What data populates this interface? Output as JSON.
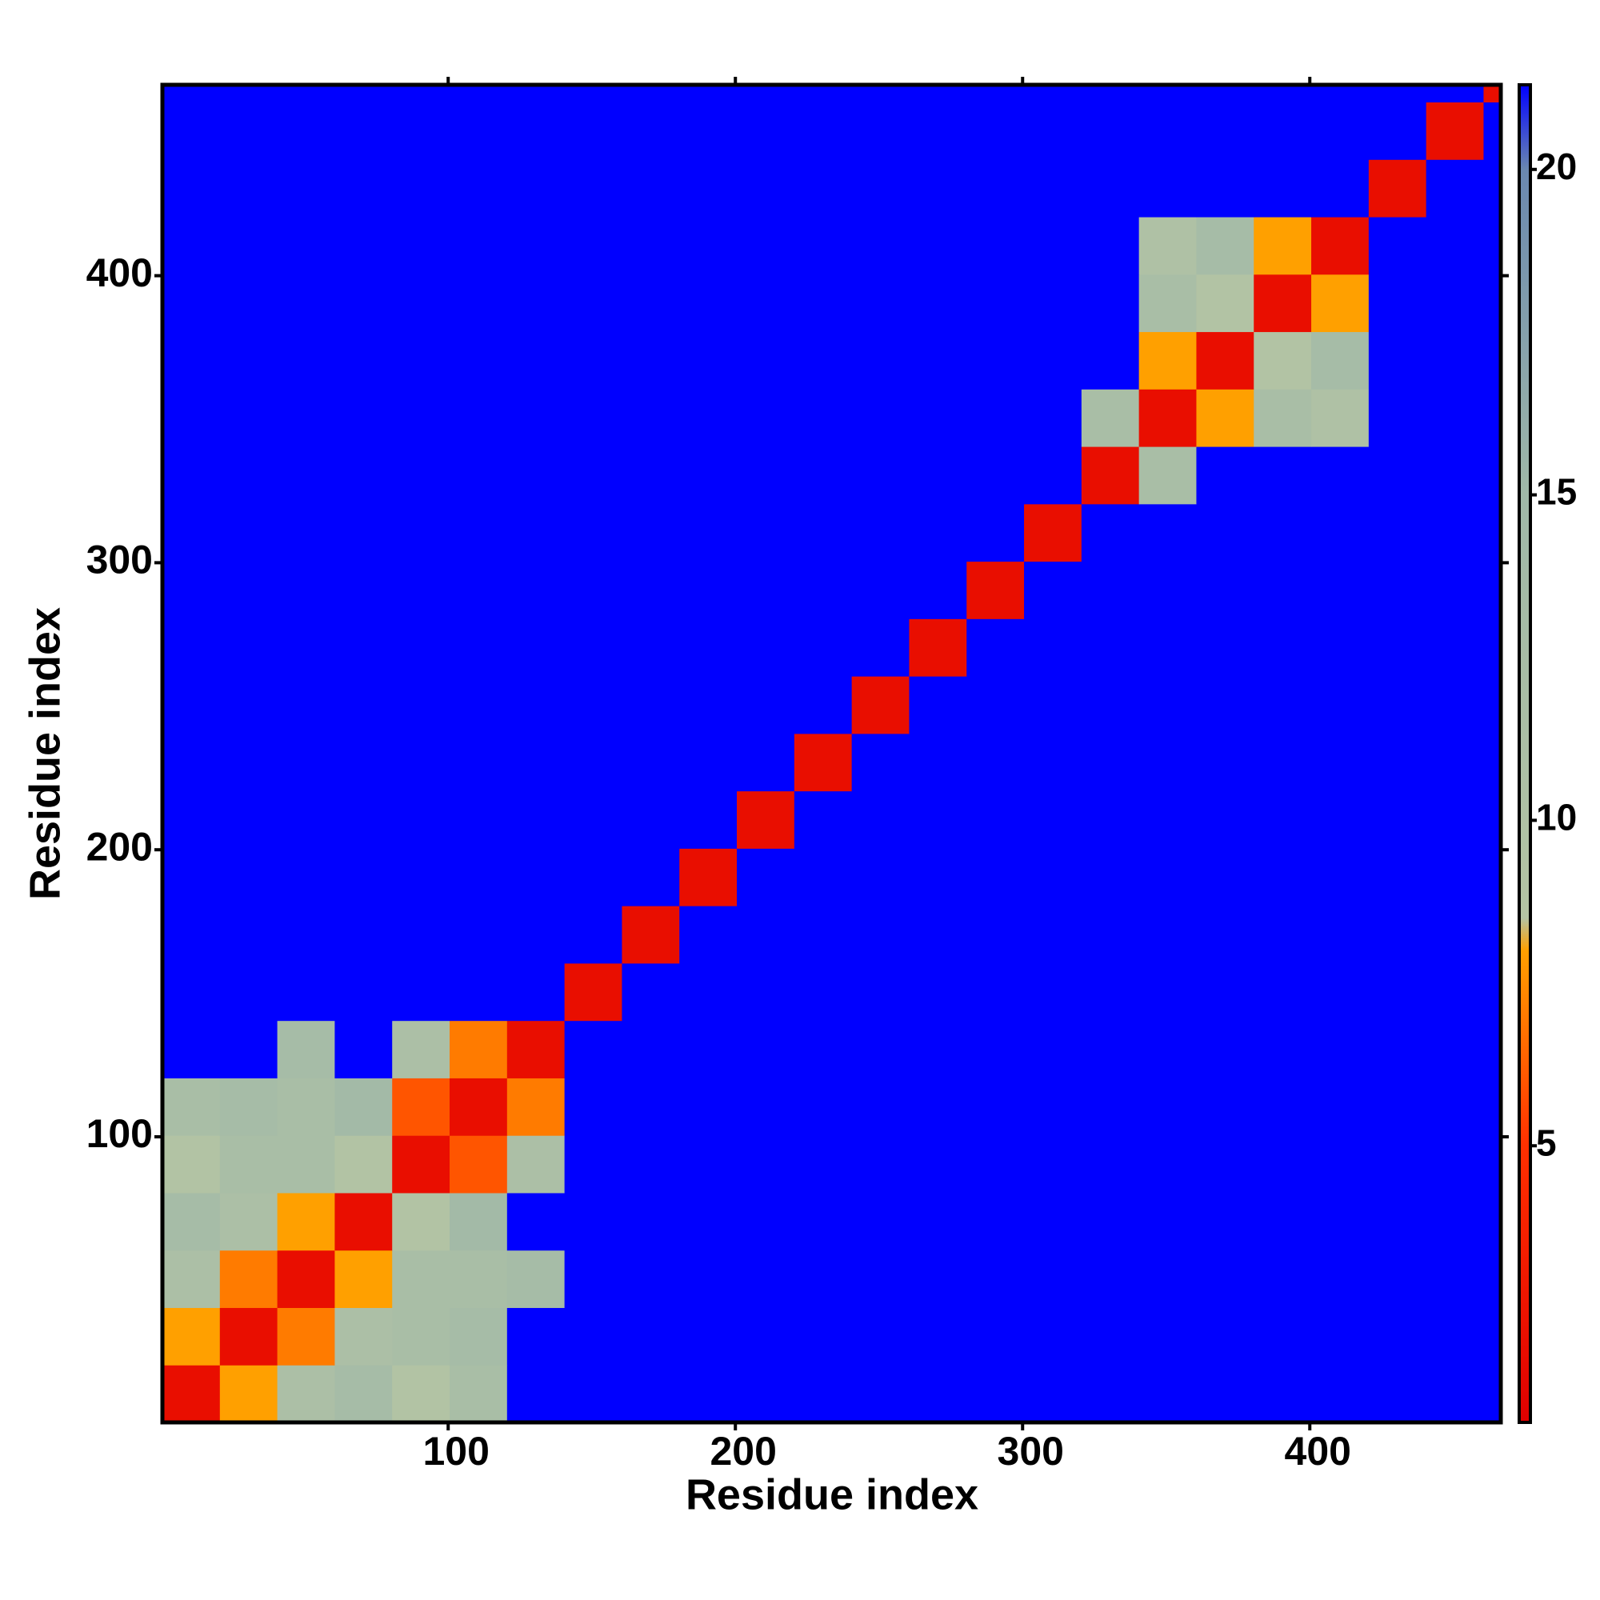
{
  "chart_data": {
    "type": "heatmap",
    "xlabel": "Residue index",
    "ylabel": "Residue index",
    "xlim": [
      0.5,
      466.5
    ],
    "ylim": [
      0.5,
      466.5
    ],
    "xticks": [
      100,
      200,
      300,
      400
    ],
    "yticks": [
      100,
      200,
      300,
      400
    ],
    "x": [
      10.5,
      30.5,
      50.5,
      70.5,
      90.5,
      110.5,
      130.5,
      150.5,
      170.5,
      190.5,
      210.5,
      230.5,
      250.5,
      270.5,
      290.5,
      310.5,
      330.5,
      350.5,
      370.5,
      390.5,
      410.5,
      430.5,
      450.5,
      470.5
    ],
    "y": [
      10.5,
      30.5,
      50.5,
      70.5,
      90.5,
      110.5,
      130.5,
      150.5,
      170.5,
      190.5,
      210.5,
      230.5,
      250.5,
      270.5,
      290.5,
      310.5,
      330.5,
      350.5,
      370.5,
      390.5,
      410.5,
      430.5,
      450.5,
      470.5
    ],
    "z": [
      [
        2,
        8,
        11,
        13,
        9,
        12,
        21.3,
        21.3,
        21.3,
        21.3,
        21.3,
        21.3,
        21.3,
        21.3,
        21.3,
        21.3,
        21.3,
        21.3,
        21.3,
        21.3,
        21.3,
        21.3,
        21.3,
        21.3
      ],
      [
        8,
        2,
        7,
        11,
        12,
        13,
        21.3,
        21.3,
        21.3,
        21.3,
        21.3,
        21.3,
        21.3,
        21.3,
        21.3,
        21.3,
        21.3,
        21.3,
        21.3,
        21.3,
        21.3,
        21.3,
        21.3,
        21.3
      ],
      [
        11,
        7,
        2,
        8,
        12,
        12,
        13,
        21.3,
        21.3,
        21.3,
        21.3,
        21.3,
        21.3,
        21.3,
        21.3,
        21.3,
        21.3,
        21.3,
        21.3,
        21.3,
        21.3,
        21.3,
        21.3,
        21.3
      ],
      [
        13,
        11,
        8,
        2,
        9,
        14,
        21.3,
        21.3,
        21.3,
        21.3,
        21.3,
        21.3,
        21.3,
        21.3,
        21.3,
        21.3,
        21.3,
        21.3,
        21.3,
        21.3,
        21.3,
        21.3,
        21.3,
        21.3
      ],
      [
        9,
        12,
        12,
        9,
        2,
        6,
        11,
        21.3,
        21.3,
        21.3,
        21.3,
        21.3,
        21.3,
        21.3,
        21.3,
        21.3,
        21.3,
        21.3,
        21.3,
        21.3,
        21.3,
        21.3,
        21.3,
        21.3
      ],
      [
        12,
        13,
        12,
        14,
        6,
        2,
        7,
        21.3,
        21.3,
        21.3,
        21.3,
        21.3,
        21.3,
        21.3,
        21.3,
        21.3,
        21.3,
        21.3,
        21.3,
        21.3,
        21.3,
        21.3,
        21.3,
        21.3
      ],
      [
        21.3,
        21.3,
        13,
        21.3,
        11,
        7,
        2,
        21.3,
        21.3,
        21.3,
        21.3,
        21.3,
        21.3,
        21.3,
        21.3,
        21.3,
        21.3,
        21.3,
        21.3,
        21.3,
        21.3,
        21.3,
        21.3,
        21.3
      ],
      [
        21.3,
        21.3,
        21.3,
        21.3,
        21.3,
        21.3,
        21.3,
        2,
        21.3,
        21.3,
        21.3,
        21.3,
        21.3,
        21.3,
        21.3,
        21.3,
        21.3,
        21.3,
        21.3,
        21.3,
        21.3,
        21.3,
        21.3,
        21.3
      ],
      [
        21.3,
        21.3,
        21.3,
        21.3,
        21.3,
        21.3,
        21.3,
        21.3,
        2,
        21.3,
        21.3,
        21.3,
        21.3,
        21.3,
        21.3,
        21.3,
        21.3,
        21.3,
        21.3,
        21.3,
        21.3,
        21.3,
        21.3,
        21.3
      ],
      [
        21.3,
        21.3,
        21.3,
        21.3,
        21.3,
        21.3,
        21.3,
        21.3,
        21.3,
        2,
        21.3,
        21.3,
        21.3,
        21.3,
        21.3,
        21.3,
        21.3,
        21.3,
        21.3,
        21.3,
        21.3,
        21.3,
        21.3,
        21.3
      ],
      [
        21.3,
        21.3,
        21.3,
        21.3,
        21.3,
        21.3,
        21.3,
        21.3,
        21.3,
        21.3,
        2,
        21.3,
        21.3,
        21.3,
        21.3,
        21.3,
        21.3,
        21.3,
        21.3,
        21.3,
        21.3,
        21.3,
        21.3,
        21.3
      ],
      [
        21.3,
        21.3,
        21.3,
        21.3,
        21.3,
        21.3,
        21.3,
        21.3,
        21.3,
        21.3,
        21.3,
        2,
        21.3,
        21.3,
        21.3,
        21.3,
        21.3,
        21.3,
        21.3,
        21.3,
        21.3,
        21.3,
        21.3,
        21.3
      ],
      [
        21.3,
        21.3,
        21.3,
        21.3,
        21.3,
        21.3,
        21.3,
        21.3,
        21.3,
        21.3,
        21.3,
        21.3,
        2,
        21.3,
        21.3,
        21.3,
        21.3,
        21.3,
        21.3,
        21.3,
        21.3,
        21.3,
        21.3,
        21.3
      ],
      [
        21.3,
        21.3,
        21.3,
        21.3,
        21.3,
        21.3,
        21.3,
        21.3,
        21.3,
        21.3,
        21.3,
        21.3,
        21.3,
        2,
        21.3,
        21.3,
        21.3,
        21.3,
        21.3,
        21.3,
        21.3,
        21.3,
        21.3,
        21.3
      ],
      [
        21.3,
        21.3,
        21.3,
        21.3,
        21.3,
        21.3,
        21.3,
        21.3,
        21.3,
        21.3,
        21.3,
        21.3,
        21.3,
        21.3,
        2,
        21.3,
        21.3,
        21.3,
        21.3,
        21.3,
        21.3,
        21.3,
        21.3,
        21.3
      ],
      [
        21.3,
        21.3,
        21.3,
        21.3,
        21.3,
        21.3,
        21.3,
        21.3,
        21.3,
        21.3,
        21.3,
        21.3,
        21.3,
        21.3,
        21.3,
        2,
        21.3,
        21.3,
        21.3,
        21.3,
        21.3,
        21.3,
        21.3,
        21.3
      ],
      [
        21.3,
        21.3,
        21.3,
        21.3,
        21.3,
        21.3,
        21.3,
        21.3,
        21.3,
        21.3,
        21.3,
        21.3,
        21.3,
        21.3,
        21.3,
        21.3,
        2,
        12,
        21.3,
        21.3,
        21.3,
        21.3,
        21.3,
        21.3
      ],
      [
        21.3,
        21.3,
        21.3,
        21.3,
        21.3,
        21.3,
        21.3,
        21.3,
        21.3,
        21.3,
        21.3,
        21.3,
        21.3,
        21.3,
        21.3,
        21.3,
        12,
        2,
        8,
        12,
        10,
        21.3,
        21.3,
        21.3
      ],
      [
        21.3,
        21.3,
        21.3,
        21.3,
        21.3,
        21.3,
        21.3,
        21.3,
        21.3,
        21.3,
        21.3,
        21.3,
        21.3,
        21.3,
        21.3,
        21.3,
        21.3,
        8,
        2,
        9,
        13,
        21.3,
        21.3,
        21.3
      ],
      [
        21.3,
        21.3,
        21.3,
        21.3,
        21.3,
        21.3,
        21.3,
        21.3,
        21.3,
        21.3,
        21.3,
        21.3,
        21.3,
        21.3,
        21.3,
        21.3,
        21.3,
        12,
        9,
        2,
        8,
        21.3,
        21.3,
        21.3
      ],
      [
        21.3,
        21.3,
        21.3,
        21.3,
        21.3,
        21.3,
        21.3,
        21.3,
        21.3,
        21.3,
        21.3,
        21.3,
        21.3,
        21.3,
        21.3,
        21.3,
        21.3,
        10,
        13,
        8,
        2,
        21.3,
        21.3,
        21.3
      ],
      [
        21.3,
        21.3,
        21.3,
        21.3,
        21.3,
        21.3,
        21.3,
        21.3,
        21.3,
        21.3,
        21.3,
        21.3,
        21.3,
        21.3,
        21.3,
        21.3,
        21.3,
        21.3,
        21.3,
        21.3,
        21.3,
        2,
        21.3,
        21.3
      ],
      [
        21.3,
        21.3,
        21.3,
        21.3,
        21.3,
        21.3,
        21.3,
        21.3,
        21.3,
        21.3,
        21.3,
        21.3,
        21.3,
        21.3,
        21.3,
        21.3,
        21.3,
        21.3,
        21.3,
        21.3,
        21.3,
        21.3,
        2,
        21.3
      ],
      [
        21.3,
        21.3,
        21.3,
        21.3,
        21.3,
        21.3,
        21.3,
        21.3,
        21.3,
        21.3,
        21.3,
        21.3,
        21.3,
        21.3,
        21.3,
        21.3,
        21.3,
        21.3,
        21.3,
        21.3,
        21.3,
        21.3,
        21.3,
        2
      ]
    ],
    "zlim": [
      0.75,
      21.3
    ],
    "colorbar_ticks": [
      5,
      10,
      15,
      20
    ],
    "colorscale": [
      [
        0.75,
        "#e00000"
      ],
      [
        5,
        "#ff3000"
      ],
      [
        8,
        "#ffa000"
      ],
      [
        8.5,
        "#b4c4a4"
      ],
      [
        15,
        "#a0b8a8"
      ],
      [
        20,
        "#6a88b0"
      ],
      [
        21.3,
        "#0000ff"
      ]
    ]
  }
}
